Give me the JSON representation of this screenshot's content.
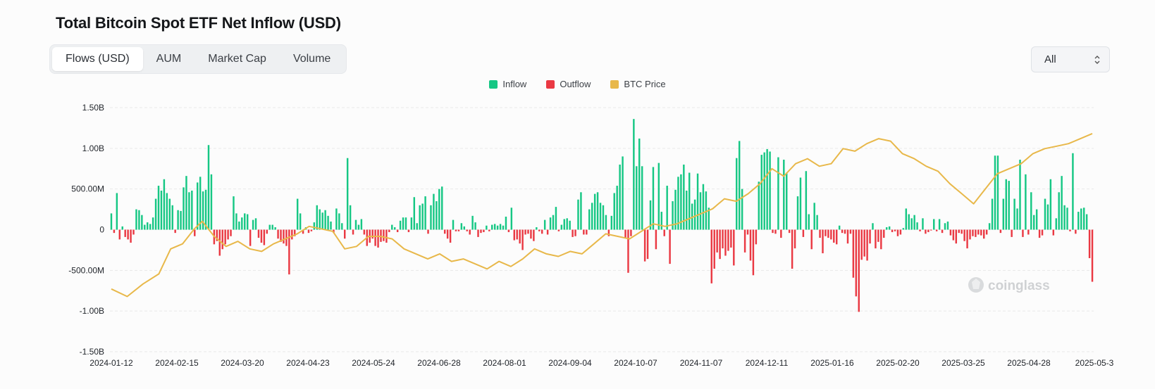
{
  "title": "Total Bitcoin Spot ETF Net Inflow (USD)",
  "tabs": [
    {
      "label": "Flows (USD)",
      "active": true
    },
    {
      "label": "AUM",
      "active": false
    },
    {
      "label": "Market Cap",
      "active": false
    },
    {
      "label": "Volume",
      "active": false
    }
  ],
  "range_select": {
    "value": "All"
  },
  "watermark": "coinglass",
  "colors": {
    "inflow": "#16c784",
    "outflow": "#ea3943",
    "price": "#e8b84a",
    "grid": "#e8e8e8"
  },
  "legend": [
    "Inflow",
    "Outflow",
    "BTC Price"
  ],
  "chart_data": {
    "type": "bar",
    "ylim": [
      -1500000000,
      1500000000
    ],
    "yticks": [
      {
        "value": 1500000000,
        "label": "1.50B"
      },
      {
        "value": 1000000000,
        "label": "1.00B"
      },
      {
        "value": 500000000,
        "label": "500.00M"
      },
      {
        "value": 0,
        "label": "0"
      },
      {
        "value": -500000000,
        "label": "-500.00M"
      },
      {
        "value": -1000000000,
        "label": "-1.00B"
      },
      {
        "value": -1500000000,
        "label": "-1.50B"
      }
    ],
    "xticks": [
      "2024-01-12",
      "2024-02-15",
      "2024-03-20",
      "2024-04-23",
      "2024-05-24",
      "2024-06-28",
      "2024-08-01",
      "2024-09-04",
      "2024-10-07",
      "2024-11-07",
      "2024-12-11",
      "2025-01-16",
      "2025-02-20",
      "2025-03-25",
      "2025-04-28",
      "2025-05-3"
    ],
    "series": [
      {
        "name": "Inflow"
      },
      {
        "name": "Outflow"
      },
      {
        "name": "BTC Price"
      }
    ],
    "flows_musd": [
      200,
      -40,
      450,
      -120,
      40,
      -90,
      -120,
      -160,
      -60,
      250,
      240,
      180,
      60,
      90,
      70,
      150,
      380,
      540,
      480,
      620,
      450,
      380,
      300,
      -40,
      240,
      230,
      520,
      660,
      460,
      480,
      -80,
      580,
      650,
      470,
      490,
      1040,
      680,
      -180,
      -140,
      -320,
      -240,
      -180,
      -120,
      -80,
      410,
      200,
      100,
      150,
      200,
      190,
      -200,
      120,
      140,
      -100,
      -160,
      -190,
      -50,
      60,
      60,
      30,
      -110,
      -150,
      -170,
      -200,
      -550,
      -120,
      -80,
      380,
      200,
      -50,
      30,
      -40,
      -20,
      90,
      300,
      250,
      210,
      240,
      170,
      100,
      -40,
      260,
      200,
      80,
      -110,
      880,
      300,
      -60,
      120,
      60,
      130,
      -60,
      -200,
      -160,
      -110,
      -200,
      -220,
      -150,
      -140,
      -160,
      -30,
      60,
      30,
      -30,
      110,
      150,
      150,
      -30,
      150,
      400,
      80,
      300,
      320,
      410,
      -50,
      300,
      440,
      350,
      500,
      530,
      -50,
      -110,
      -160,
      120,
      -20,
      -20,
      80,
      40,
      -20,
      -60,
      170,
      90,
      -90,
      -40,
      -30,
      50,
      -20,
      60,
      70,
      50,
      70,
      50,
      160,
      -30,
      270,
      -130,
      -120,
      -170,
      -250,
      -60,
      -50,
      -110,
      -140,
      30,
      -20,
      -50,
      120,
      -60,
      150,
      180,
      280,
      -20,
      60,
      130,
      140,
      110,
      -90,
      -80,
      370,
      460,
      -60,
      -60,
      250,
      330,
      440,
      460,
      330,
      300,
      180,
      -80,
      170,
      450,
      540,
      800,
      900,
      -100,
      -530,
      -80,
      1360,
      780,
      1120,
      780,
      -390,
      -360,
      360,
      770,
      -240,
      820,
      220,
      -80,
      540,
      -420,
      350,
      490,
      650,
      680,
      800,
      480,
      700,
      320,
      370,
      690,
      460,
      560,
      470,
      270,
      -660,
      -480,
      -280,
      -360,
      -230,
      -320,
      -260,
      -220,
      -440,
      880,
      1090,
      500,
      -280,
      -60,
      -380,
      -560,
      -180,
      590,
      920,
      950,
      990,
      960,
      -40,
      -50,
      890,
      -100,
      860,
      700,
      -40,
      -480,
      -230,
      410,
      640,
      -90,
      720,
      190,
      -240,
      330,
      180,
      -100,
      -290,
      -80,
      -100,
      -120,
      -160,
      -180,
      50,
      -40,
      -50,
      -170,
      -50,
      -590,
      -820,
      -1010,
      -370,
      -330,
      -380,
      -170,
      80,
      -230,
      -150,
      -240,
      -100,
      30,
      40,
      -30,
      -20,
      -80,
      -60,
      20,
      260,
      190,
      140,
      180,
      90,
      -20,
      140,
      -50,
      -30,
      -10,
      130,
      -20,
      130,
      -40,
      80,
      100,
      -70,
      -130,
      -170,
      -40,
      -50,
      -140,
      -230,
      -120,
      -80,
      -90,
      -60,
      -70,
      -110,
      -60,
      80,
      380,
      910,
      910,
      -40,
      380,
      620,
      600,
      -90,
      380,
      260,
      860,
      -90,
      680,
      -60,
      460,
      180,
      250,
      -100,
      -70,
      380,
      310,
      620,
      -70,
      140,
      460,
      660,
      300,
      270,
      -20,
      940,
      -50,
      220,
      260,
      270,
      190,
      -350,
      -640
    ],
    "btc_price": [
      [
        0,
        46
      ],
      [
        20,
        43
      ],
      [
        40,
        48
      ],
      [
        60,
        52
      ],
      [
        75,
        62
      ],
      [
        90,
        64
      ],
      [
        105,
        70
      ],
      [
        115,
        73
      ],
      [
        130,
        67
      ],
      [
        145,
        63
      ],
      [
        160,
        65
      ],
      [
        175,
        62
      ],
      [
        190,
        61
      ],
      [
        205,
        64
      ],
      [
        220,
        66
      ],
      [
        235,
        68
      ],
      [
        250,
        71
      ],
      [
        265,
        70
      ],
      [
        280,
        69
      ],
      [
        295,
        62
      ],
      [
        310,
        63
      ],
      [
        325,
        67
      ],
      [
        340,
        67
      ],
      [
        355,
        66
      ],
      [
        370,
        62
      ],
      [
        385,
        60
      ],
      [
        400,
        58
      ],
      [
        415,
        60
      ],
      [
        430,
        57
      ],
      [
        445,
        58
      ],
      [
        460,
        56
      ],
      [
        475,
        54
      ],
      [
        490,
        57
      ],
      [
        505,
        55
      ],
      [
        520,
        58
      ],
      [
        535,
        62
      ],
      [
        550,
        60
      ],
      [
        565,
        59
      ],
      [
        580,
        61
      ],
      [
        595,
        60
      ],
      [
        610,
        64
      ],
      [
        625,
        68
      ],
      [
        640,
        67
      ],
      [
        655,
        66
      ],
      [
        670,
        69
      ],
      [
        685,
        72
      ],
      [
        700,
        71
      ],
      [
        715,
        72
      ],
      [
        730,
        74
      ],
      [
        745,
        76
      ],
      [
        760,
        78
      ],
      [
        775,
        82
      ],
      [
        790,
        81
      ],
      [
        805,
        84
      ],
      [
        820,
        88
      ],
      [
        835,
        94
      ],
      [
        850,
        91
      ],
      [
        865,
        96
      ],
      [
        880,
        98
      ],
      [
        895,
        95
      ],
      [
        910,
        96
      ],
      [
        925,
        102
      ],
      [
        940,
        101
      ],
      [
        955,
        104
      ],
      [
        970,
        106
      ],
      [
        985,
        105
      ],
      [
        1000,
        100
      ],
      [
        1015,
        98
      ],
      [
        1030,
        95
      ],
      [
        1045,
        93
      ],
      [
        1060,
        88
      ],
      [
        1075,
        84
      ],
      [
        1090,
        80
      ],
      [
        1105,
        86
      ],
      [
        1120,
        92
      ],
      [
        1135,
        94
      ],
      [
        1150,
        96
      ],
      [
        1165,
        100
      ],
      [
        1180,
        102
      ],
      [
        1195,
        103
      ],
      [
        1210,
        104
      ],
      [
        1225,
        106
      ],
      [
        1240,
        108
      ]
    ]
  }
}
